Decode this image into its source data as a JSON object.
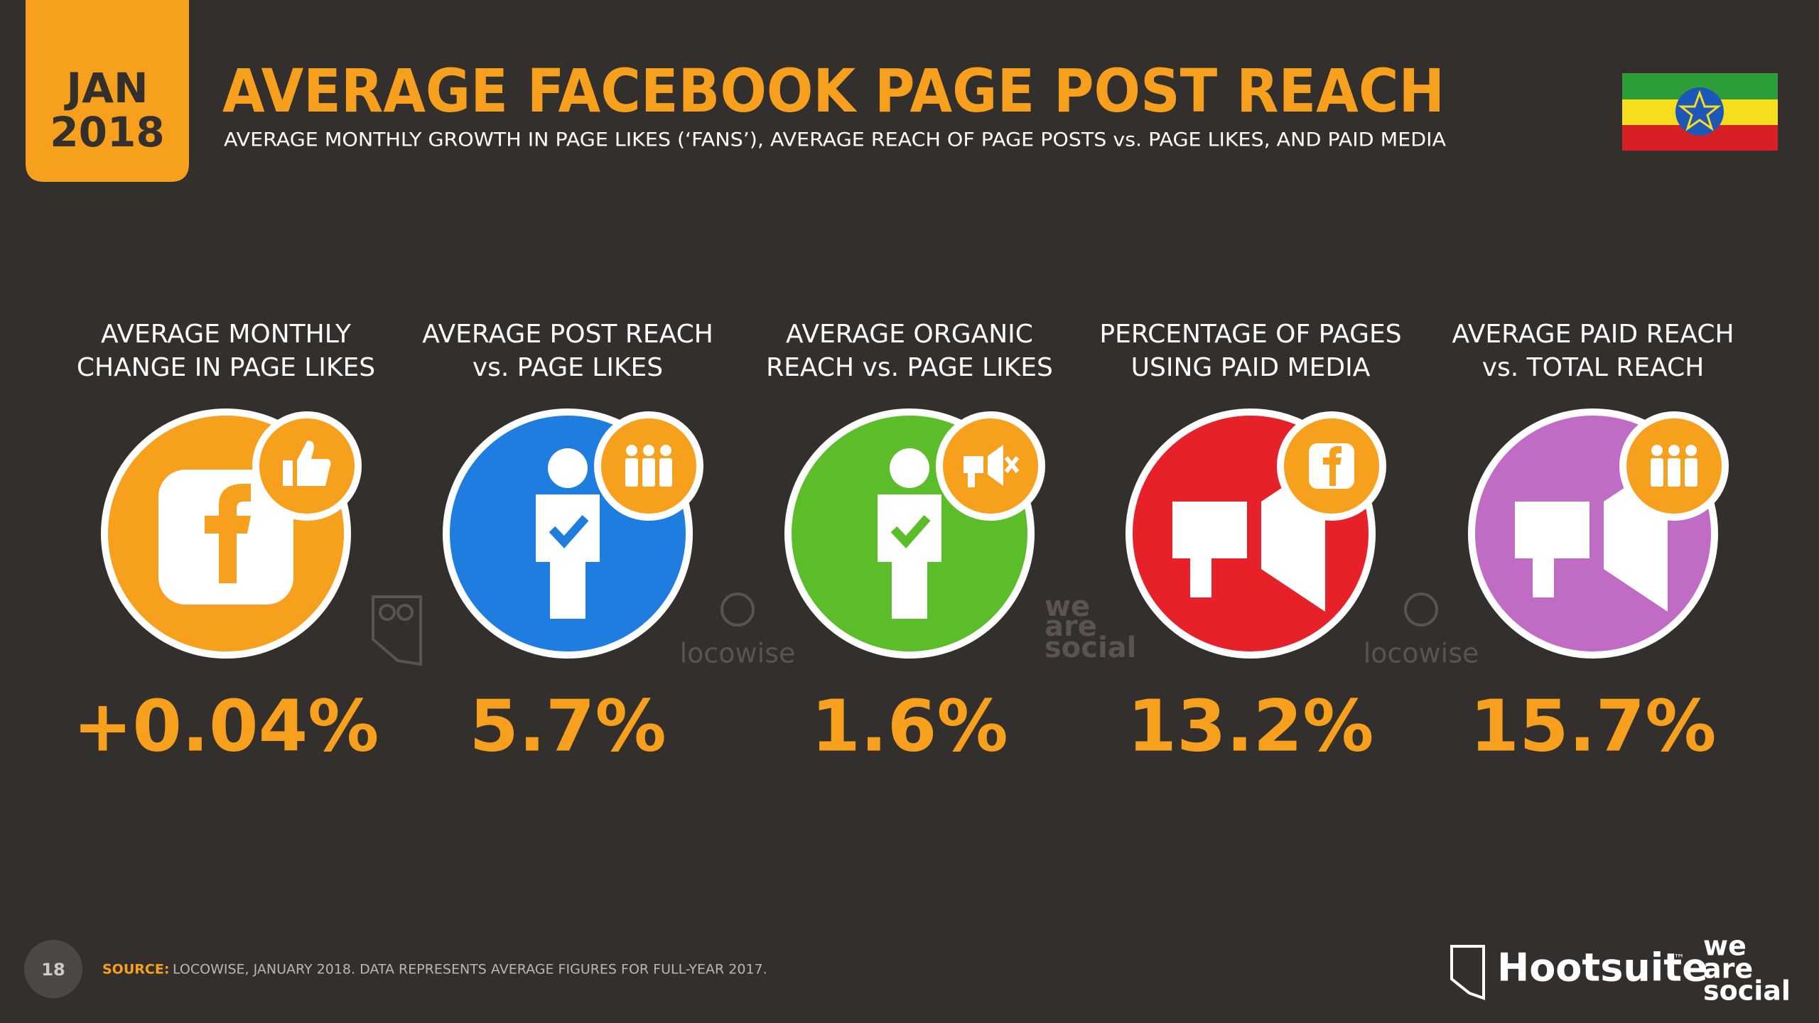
{
  "header": {
    "month": "JAN",
    "year": "2018",
    "title": "AVERAGE FACEBOOK PAGE POST REACH",
    "subtitle": "AVERAGE MONTHLY GROWTH IN PAGE LIKES (‘FANS’), AVERAGE REACH OF PAGE POSTS vs. PAGE LIKES, AND PAID MEDIA"
  },
  "stats": [
    {
      "label": [
        "AVERAGE MONTHLY",
        "CHANGE IN PAGE LIKES"
      ],
      "value": "+0.04%",
      "color": "#f7a01d"
    },
    {
      "label": [
        "AVERAGE POST REACH",
        "vs. PAGE LIKES"
      ],
      "value": "5.7%",
      "color": "#1f7de0"
    },
    {
      "label": [
        "AVERAGE ORGANIC",
        "REACH vs. PAGE LIKES"
      ],
      "value": "1.6%",
      "color": "#5cbd2b"
    },
    {
      "label": [
        "PERCENTAGE OF PAGES",
        "USING PAID MEDIA"
      ],
      "value": "13.2%",
      "color": "#e6212a"
    },
    {
      "label": [
        "AVERAGE PAID REACH",
        "vs. TOTAL REACH"
      ],
      "value": "15.7%",
      "color": "#c06cc4"
    }
  ],
  "watermarks": [
    "locowise",
    "locowise"
  ],
  "footer": {
    "page_number": "18",
    "source_label": "SOURCE:",
    "source_text": "LOCOWISE, JANUARY 2018. DATA REPRESENTS AVERAGE FIGURES FOR FULL-YEAR 2017.",
    "hootsuite": "Hootsuite",
    "trademark": "™",
    "we_are_social": [
      "we",
      "are",
      "social"
    ]
  }
}
